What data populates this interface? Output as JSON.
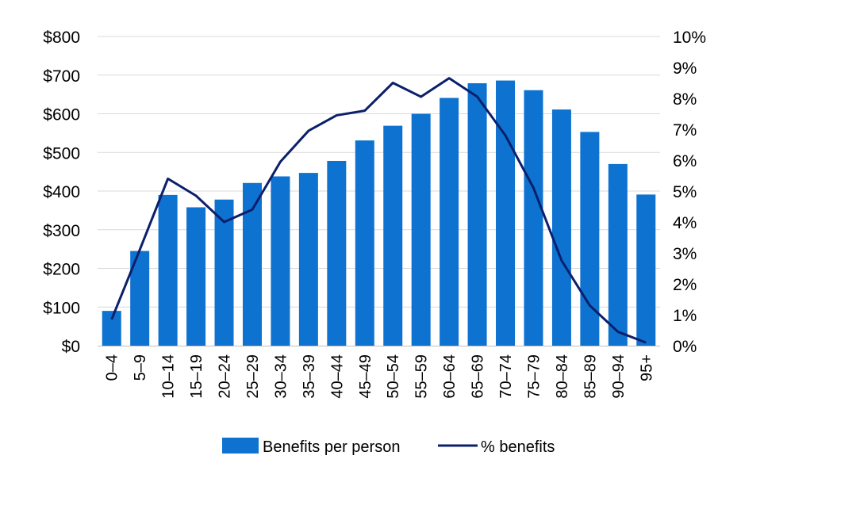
{
  "chart_data": {
    "type": "bar+line",
    "categories": [
      "0–4",
      "5–9",
      "10–14",
      "15–19",
      "20–24",
      "25–29",
      "30–34",
      "35–39",
      "40–44",
      "45–49",
      "50–54",
      "55–59",
      "60–64",
      "65–69",
      "70–74",
      "75–79",
      "80–84",
      "85–89",
      "90–94",
      "95+"
    ],
    "series": [
      {
        "name": "Benefits per person",
        "type": "bar",
        "axis": "left",
        "color": "#0e72d0",
        "values": [
          90,
          245,
          390,
          358,
          378,
          421,
          438,
          447,
          478,
          531,
          569,
          600,
          641,
          679,
          686,
          661,
          611,
          553,
          470,
          391
        ]
      },
      {
        "name": "% benefits",
        "type": "line",
        "axis": "right",
        "color": "#0b1f6b",
        "values": [
          0.85,
          3.1,
          5.4,
          4.85,
          4.0,
          4.4,
          5.95,
          6.95,
          7.45,
          7.6,
          8.5,
          8.05,
          8.65,
          8.05,
          6.8,
          5.1,
          2.75,
          1.3,
          0.45,
          0.1
        ]
      }
    ],
    "y_left": {
      "min": 0,
      "max": 800,
      "ticks": [
        0,
        100,
        200,
        300,
        400,
        500,
        600,
        700,
        800
      ],
      "tick_labels": [
        "$0",
        "$100",
        "$200",
        "$300",
        "$400",
        "$500",
        "$600",
        "$700",
        "$800"
      ]
    },
    "y_right": {
      "min": 0,
      "max": 10,
      "ticks": [
        0,
        1,
        2,
        3,
        4,
        5,
        6,
        7,
        8,
        9,
        10
      ],
      "tick_labels": [
        "0%",
        "1%",
        "2%",
        "3%",
        "4%",
        "5%",
        "6%",
        "7%",
        "8%",
        "9%",
        "10%"
      ]
    },
    "grid": true,
    "legend_position": "bottom",
    "title": "",
    "xlabel": "",
    "ylabel": ""
  },
  "legend": {
    "bar_label": "Benefits per person",
    "line_label": "% benefits"
  }
}
